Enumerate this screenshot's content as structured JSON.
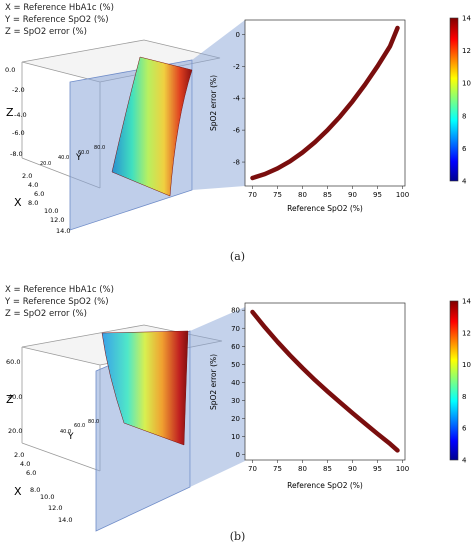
{
  "figure": {
    "legend_lines": [
      "X = Reference HbA1c (%)",
      "Y = Reference SpO2 (%)",
      "Z = SpO2 error (%)"
    ],
    "colorbar_ticks": [
      "4",
      "6",
      "8",
      "10",
      "12",
      "14"
    ],
    "colors": {
      "curve": "#7a0e0e",
      "plane": "#8aa5d8",
      "text": "#222222"
    }
  },
  "chart_data": [
    {
      "type": "line",
      "caption": "(a)",
      "x": [
        70,
        72.5,
        75,
        77.5,
        80,
        82.5,
        85,
        87.5,
        90,
        92.5,
        95,
        97.5,
        99
      ],
      "y": [
        -9.0,
        -8.75,
        -8.4,
        -7.95,
        -7.4,
        -6.75,
        -6.0,
        -5.15,
        -4.2,
        -3.15,
        -2.0,
        -0.75,
        0.4
      ],
      "xlabel": "Reference SpO2 (%)",
      "ylabel": "SpO2 error (%)",
      "xticks": [
        70,
        75,
        80,
        85,
        90,
        95,
        100
      ],
      "yticks": [
        -8,
        -6,
        -4,
        -2,
        0
      ],
      "xlim": [
        68.5,
        100.5
      ],
      "ylim": [
        -9.5,
        0.9
      ],
      "grid": false,
      "colorbar": {
        "range": [
          4,
          14
        ],
        "ticks": [
          4,
          6,
          8,
          10,
          12,
          14
        ]
      },
      "surface_3d": {
        "axis_letters": [
          "X",
          "Y",
          "Z"
        ],
        "z_ticks": [
          "0.0",
          "-2.0",
          "-4.0",
          "-6.0",
          "-8.0"
        ],
        "x_ticks": [
          "2.0",
          "4.0",
          "6.0",
          "8.0",
          "10.0",
          "12.0",
          "14.0"
        ],
        "y_ticks": [
          "20.0",
          "40.0",
          "60.0",
          "80.0"
        ]
      }
    },
    {
      "type": "line",
      "caption": "(b)",
      "x": [
        70,
        72.5,
        75,
        77.5,
        80,
        82.5,
        85,
        87.5,
        90,
        92.5,
        95,
        97.5,
        99
      ],
      "y": [
        79.0,
        70.5,
        62.5,
        55.0,
        48.0,
        41.3,
        35.0,
        29.0,
        23.0,
        17.2,
        11.5,
        6.0,
        2.3
      ],
      "xlabel": "Reference SpO2 (%)",
      "ylabel": "SpO2 error (%)",
      "xticks": [
        70,
        75,
        80,
        85,
        90,
        95,
        100
      ],
      "yticks": [
        0,
        10,
        20,
        30,
        40,
        50,
        60,
        70,
        80
      ],
      "xlim": [
        68.5,
        100.5
      ],
      "ylim": [
        -3,
        84
      ],
      "grid": false,
      "colorbar": {
        "range": [
          4,
          14
        ],
        "ticks": [
          4,
          6,
          8,
          10,
          12,
          14
        ]
      },
      "surface_3d": {
        "axis_letters": [
          "X",
          "Y",
          "Z"
        ],
        "z_ticks": [
          "60.0",
          "40.0",
          "20.0"
        ],
        "x_ticks": [
          "2.0",
          "4.0",
          "6.0",
          "8.0",
          "10.0",
          "12.0",
          "14.0"
        ],
        "y_ticks": [
          "40.0",
          "60.0",
          "80.0"
        ]
      }
    }
  ]
}
